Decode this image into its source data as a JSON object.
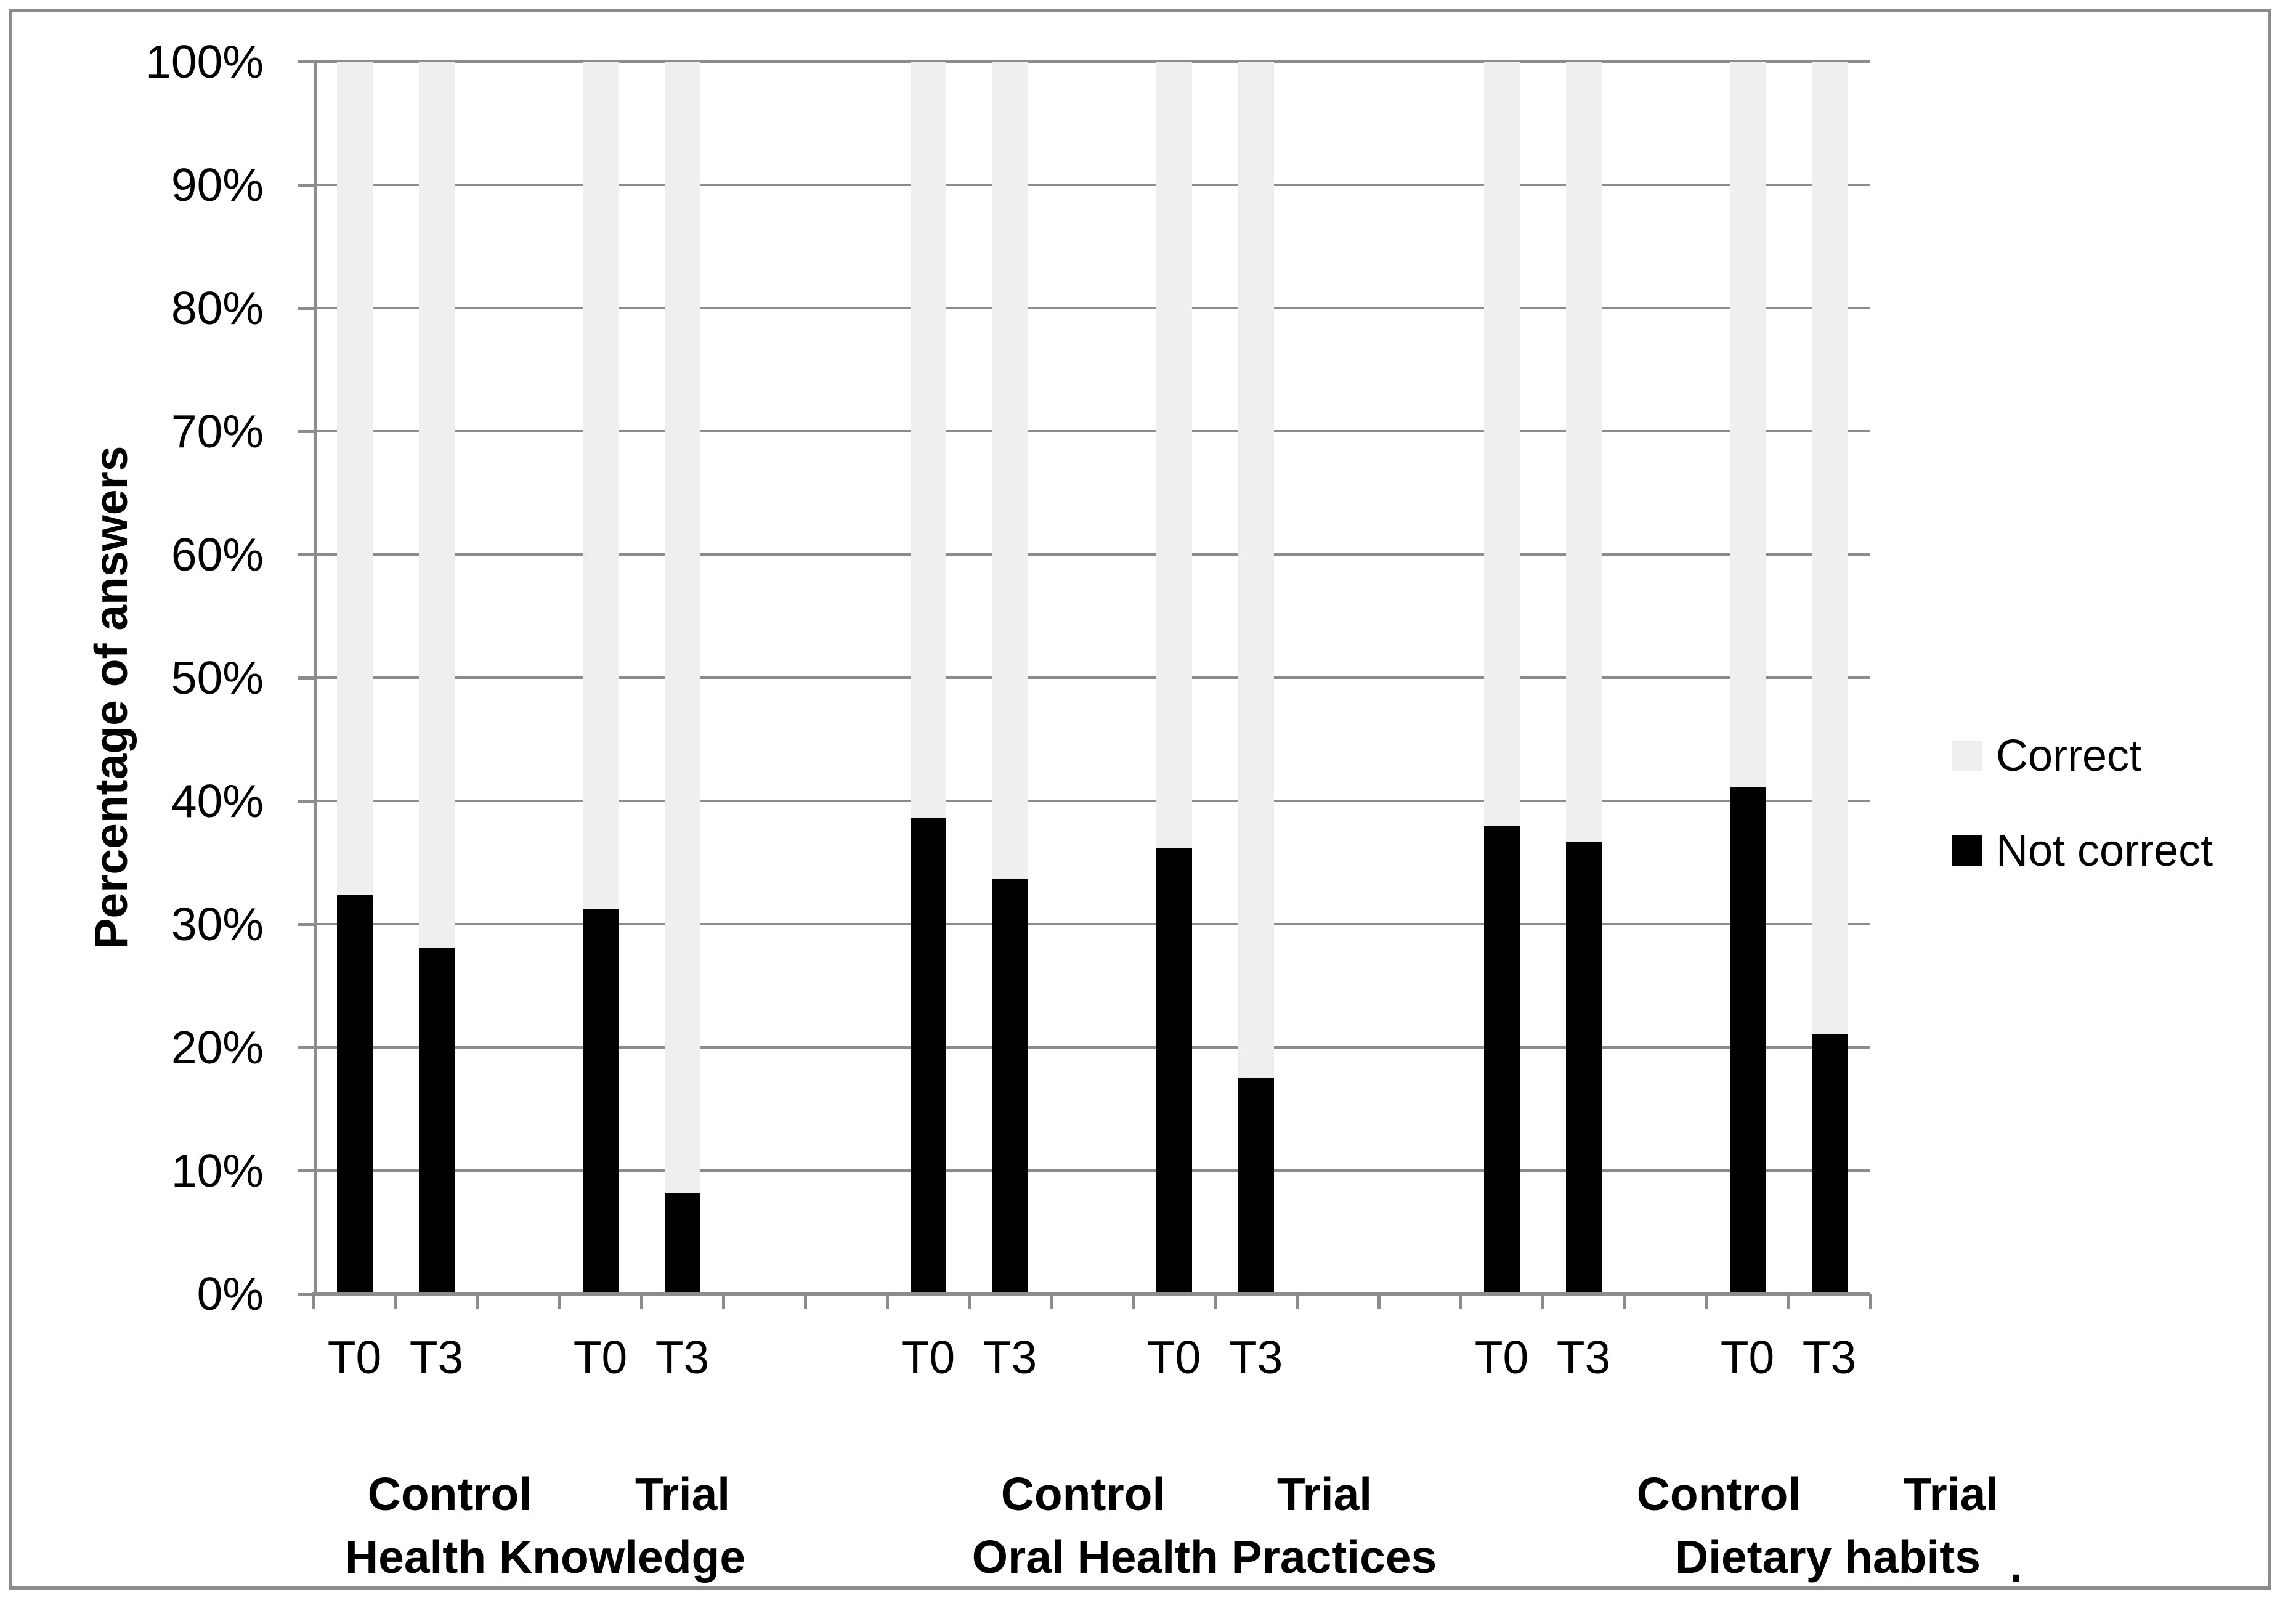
{
  "chart_data": {
    "type": "bar",
    "variant": "stacked-100",
    "title": "",
    "ylabel": "Percentage of answers",
    "xlabel": "",
    "ylim": [
      0,
      100
    ],
    "ytick_step": 10,
    "y_tick_labels": [
      "0%",
      "10%",
      "20%",
      "30%",
      "40%",
      "50%",
      "60%",
      "70%",
      "80%",
      "90%",
      "100%"
    ],
    "grid": "horizontal",
    "legend_position": "right",
    "legend": [
      {
        "label": "Correct",
        "color": "#efefef"
      },
      {
        "label": "Not correct",
        "color": "#000000"
      }
    ],
    "note": ".",
    "groups": [
      {
        "category": "Health Knowledge",
        "subgroups": [
          {
            "label": "Control",
            "bars": [
              {
                "tick": "T0",
                "not_correct": 32.4,
                "correct": 67.6
              },
              {
                "tick": "T3",
                "not_correct": 28.1,
                "correct": 71.9
              }
            ]
          },
          {
            "label": "Trial",
            "bars": [
              {
                "tick": "T0",
                "not_correct": 31.2,
                "correct": 68.8
              },
              {
                "tick": "T3",
                "not_correct": 8.2,
                "correct": 91.8
              }
            ]
          }
        ]
      },
      {
        "category": "Oral Health Practices",
        "subgroups": [
          {
            "label": "Control",
            "bars": [
              {
                "tick": "T0",
                "not_correct": 38.6,
                "correct": 61.4
              },
              {
                "tick": "T3",
                "not_correct": 33.7,
                "correct": 66.3
              }
            ]
          },
          {
            "label": "Trial",
            "bars": [
              {
                "tick": "T0",
                "not_correct": 36.2,
                "correct": 63.8
              },
              {
                "tick": "T3",
                "not_correct": 17.5,
                "correct": 82.5
              }
            ]
          }
        ]
      },
      {
        "category": "Dietary habits",
        "subgroups": [
          {
            "label": "Control",
            "bars": [
              {
                "tick": "T0",
                "not_correct": 38.0,
                "correct": 62.0
              },
              {
                "tick": "T3",
                "not_correct": 36.7,
                "correct": 63.3
              }
            ]
          },
          {
            "label": "Trial",
            "bars": [
              {
                "tick": "T0",
                "not_correct": 41.1,
                "correct": 58.9
              },
              {
                "tick": "T3",
                "not_correct": 21.1,
                "correct": 78.9
              }
            ]
          }
        ]
      }
    ],
    "colors": {
      "correct": "#efefef",
      "not_correct": "#000000",
      "gridline": "#8c8c8c",
      "axis": "#8c8c8c",
      "border": "#8c8c8c",
      "text": "#000000"
    }
  }
}
